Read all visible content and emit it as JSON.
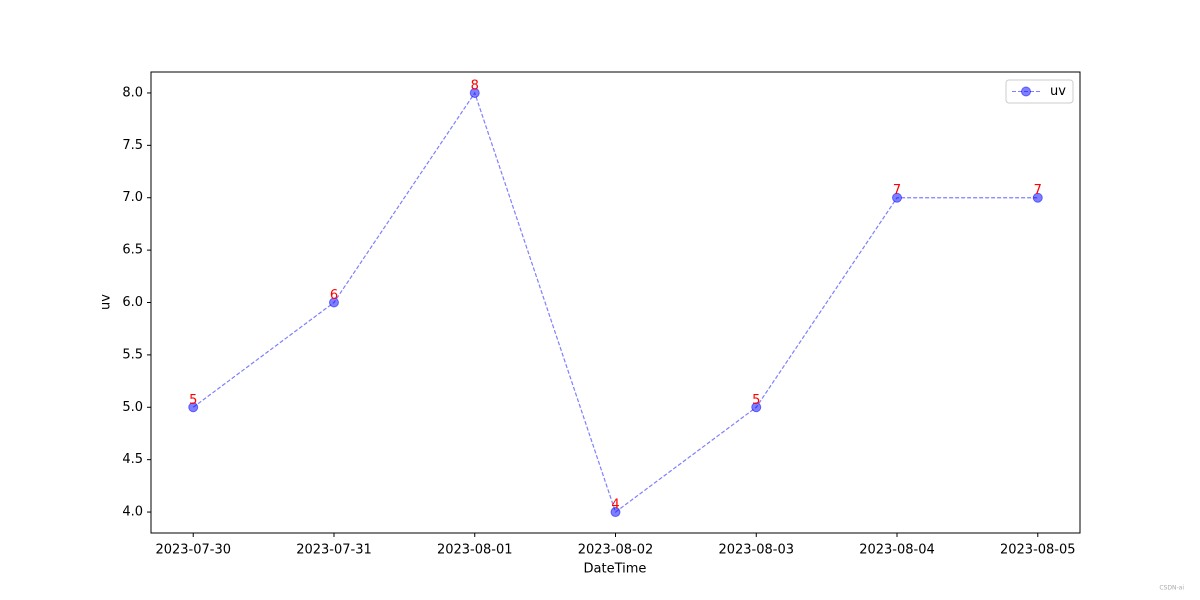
{
  "chart_data": {
    "type": "line",
    "xlabel": "DateTime",
    "ylabel": "uv",
    "categories": [
      "2023-07-30",
      "2023-07-31",
      "2023-08-01",
      "2023-08-02",
      "2023-08-03",
      "2023-08-04",
      "2023-08-05"
    ],
    "series": [
      {
        "name": "uv",
        "color": "#0000ff",
        "values": [
          5,
          6,
          8,
          4,
          5,
          7,
          7
        ]
      }
    ],
    "ylim": [
      3.8,
      8.2
    ],
    "yticks": [
      {
        "value": 4,
        "label": "4.0"
      },
      {
        "value": 4.5,
        "label": "4.5"
      },
      {
        "value": 5,
        "label": "5.0"
      },
      {
        "value": 5.5,
        "label": "5.5"
      },
      {
        "value": 6,
        "label": "6.0"
      },
      {
        "value": 6.5,
        "label": "6.5"
      },
      {
        "value": 7,
        "label": "7.0"
      },
      {
        "value": 7.5,
        "label": "7.5"
      },
      {
        "value": 8,
        "label": "8.0"
      }
    ],
    "legend": "upper right",
    "value_label_color": "#ff0000",
    "grid": false
  },
  "watermark": "CSDN-ai"
}
